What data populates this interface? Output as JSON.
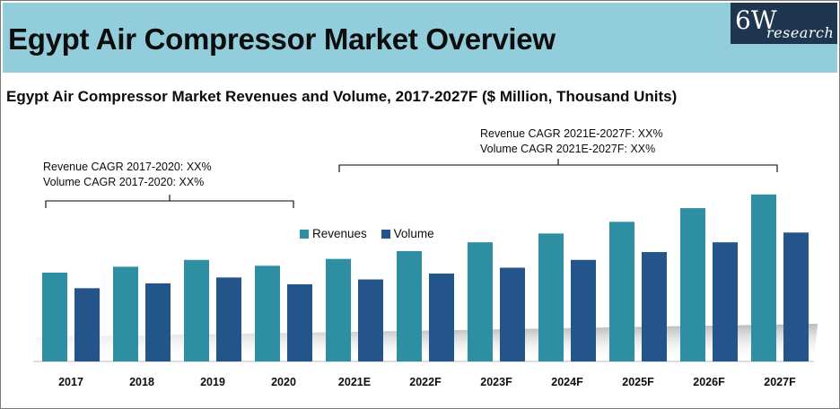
{
  "header": {
    "title": "Egypt Air Compressor Market Overview",
    "logo_main": "6W",
    "logo_sub": "research"
  },
  "colors": {
    "header_bg": "#92cddc",
    "logo_bg": "#1f3650",
    "revenues": "#2e8fa3",
    "volume": "#24558a"
  },
  "chart_data": {
    "type": "bar",
    "title": "Egypt Air Compressor Market Revenues and Volume, 2017-2027F ($ Million, Thousand Units)",
    "categories": [
      "2017",
      "2018",
      "2019",
      "2020",
      "2021E",
      "2022F",
      "2023F",
      "2024F",
      "2025F",
      "2026F",
      "2027F"
    ],
    "series": [
      {
        "name": "Revenues",
        "values": [
          91,
          97,
          104,
          98,
          105,
          113,
          122,
          131,
          143,
          157,
          171
        ]
      },
      {
        "name": "Volume",
        "values": [
          75,
          80,
          86,
          79,
          84,
          90,
          96,
          104,
          112,
          122,
          132
        ]
      }
    ],
    "ylim": [
      0,
      180
    ],
    "y_axis_visible": false,
    "xlabel": "",
    "ylabel": "",
    "legend_position": "top-center",
    "annotations": {
      "left_period": {
        "revenue_cagr": "Revenue CAGR 2017-2020: XX%",
        "volume_cagr": "Volume CAGR 2017-2020: XX%"
      },
      "right_period": {
        "revenue_cagr": "Revenue CAGR 2021E-2027F: XX%",
        "volume_cagr": "Volume CAGR 2021E-2027F: XX%"
      }
    }
  }
}
